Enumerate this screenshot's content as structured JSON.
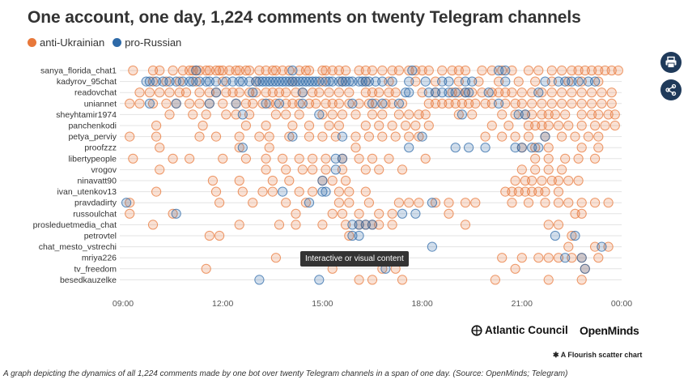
{
  "title": "One account, one day, 1,224 comments on twenty Telegram channels",
  "legend": [
    {
      "label": "anti-Ukrainian",
      "color": "#e8783a"
    },
    {
      "label": "pro-Russian",
      "color": "#2e6aa8"
    }
  ],
  "tooltip": "Interactive or visual content",
  "brands": {
    "atlantic": "Atlantic Council",
    "openminds": "OpenMinds"
  },
  "flourish_label": "A Flourish scatter chart",
  "caption": "A graph depicting the dynamics of all 1,224 comments made by one bot over twenty Telegram channels in a span of one day. (Source: OpenMinds; Telegram)",
  "icons": {
    "print": "print-icon",
    "share": "share-icon"
  },
  "chart_data": {
    "type": "scatter",
    "x_ticks": [
      "09:00",
      "12:00",
      "15:00",
      "18:00",
      "21:00",
      "00:00"
    ],
    "categories": [
      "sanya_florida_chat1",
      "kadyrov_95chat",
      "readovchat",
      "uniannet",
      "sheyhtamir1974",
      "panchenkodi",
      "petya_perviy",
      "proofzzz",
      "libertypeople",
      "vrogov",
      "ninavatt90",
      "ivan_utenkov13",
      "pravdadirty",
      "russoulchat",
      "prosleduetmedia_chat",
      "petrovtel",
      "chat_mesto_vstrechi",
      "mriya226",
      "tv_freedom",
      "besedkauzelke"
    ],
    "series": [
      {
        "name": "anti-Ukrainian",
        "color": "#e8783a",
        "points": [
          [
            "sanya_florida_chat1",
            [
              9.3,
              9.9,
              10.1,
              10.5,
              10.8,
              11.0,
              11.1,
              11.2,
              11.3,
              11.5,
              11.6,
              11.8,
              11.9,
              12.0,
              12.2,
              12.4,
              12.5,
              12.7,
              12.8,
              13.1,
              13.3,
              13.5,
              13.6,
              13.8,
              14.0,
              14.3,
              14.5,
              14.6,
              15.0,
              15.1,
              15.3,
              15.5,
              15.7,
              16.1,
              16.3,
              16.5,
              16.8,
              17.1,
              17.3,
              17.6,
              17.8,
              18.0,
              18.2,
              18.6,
              18.9,
              19.1,
              19.3,
              19.8,
              20.1,
              20.4,
              20.7,
              21.2,
              21.5,
              21.9,
              22.2,
              22.5,
              22.7,
              22.9,
              23.1,
              23.3,
              23.5,
              23.7,
              23.9
            ]
          ],
          [
            "kadyrov_95chat",
            [
              9.9,
              10.3,
              10.7,
              11.2,
              12.0,
              13.0,
              14.1,
              15.0,
              15.6,
              16.3,
              17.0,
              17.8,
              18.4,
              19.1,
              19.7,
              20.3,
              20.9,
              21.4,
              21.9,
              22.4,
              22.8,
              23.3
            ]
          ],
          [
            "readovchat",
            [
              9.5,
              9.8,
              10.1,
              10.4,
              10.7,
              10.9,
              11.3,
              11.6,
              11.8,
              12.1,
              12.3,
              12.5,
              12.8,
              13.0,
              13.3,
              13.5,
              13.7,
              13.9,
              14.2,
              14.4,
              14.7,
              14.9,
              15.2,
              15.5,
              15.8,
              16.3,
              16.5,
              16.7,
              17.0,
              17.2,
              18.0,
              18.4,
              18.9,
              19.1,
              19.3,
              19.5,
              19.8,
              20.1,
              20.3,
              20.5,
              20.7,
              21.0,
              21.3,
              21.6,
              21.9,
              22.2,
              22.5,
              22.8,
              23.1,
              23.4,
              23.7
            ]
          ],
          [
            "uniannet",
            [
              9.2,
              9.5,
              9.9,
              10.3,
              10.6,
              11.0,
              11.3,
              11.6,
              12.0,
              12.4,
              12.7,
              12.9,
              13.2,
              13.4,
              13.6,
              13.9,
              14.1,
              14.3,
              14.6,
              14.8,
              15.1,
              15.3,
              15.5,
              15.8,
              16.1,
              16.4,
              16.6,
              16.9,
              17.1,
              17.4,
              18.2,
              18.4,
              18.6,
              18.8,
              19.0,
              19.2,
              19.4,
              19.6,
              19.9,
              20.1,
              20.5,
              20.8,
              21.0,
              21.3,
              21.6,
              21.9,
              22.2,
              22.5,
              22.8,
              23.1,
              23.4,
              23.7
            ]
          ],
          [
            "sheyhtamir1974",
            [
              10.4,
              11.1,
              11.5,
              12.1,
              12.4,
              12.8,
              13.6,
              13.9,
              14.3,
              15.0,
              15.3,
              15.6,
              16.0,
              16.5,
              16.8,
              17.3,
              17.6,
              17.9,
              18.1,
              19.1,
              19.5,
              20.4,
              20.8,
              21.1,
              21.3,
              21.6,
              21.8,
              22.0,
              22.3,
              22.8,
              23.1,
              23.3,
              23.6,
              23.8
            ]
          ],
          [
            "panchenkodi",
            [
              10.0,
              11.4,
              12.7,
              13.3,
              14.1,
              14.6,
              15.2,
              15.5,
              16.3,
              16.7,
              17.1,
              17.5,
              17.8,
              18.2,
              20.1,
              20.6,
              21.2,
              21.4,
              21.6,
              21.8,
              22.1,
              22.4,
              22.8,
              23.2,
              23.5,
              23.8
            ]
          ],
          [
            "petya_perviy",
            [
              9.2,
              10.0,
              11.3,
              11.8,
              12.5,
              13.1,
              13.4,
              14.0,
              14.6,
              15.0,
              15.4,
              16.0,
              16.4,
              16.8,
              17.2,
              17.6,
              17.9,
              19.9,
              20.4,
              20.8,
              21.2,
              21.7,
              22.2,
              22.6,
              23.0,
              23.3
            ]
          ],
          [
            "proofzzz",
            [
              10.1,
              12.5,
              13.4,
              16.0,
              21.0,
              21.4,
              21.8,
              22.8,
              23.3
            ]
          ],
          [
            "libertypeople",
            [
              9.3,
              10.5,
              11.0,
              12.0,
              12.7,
              13.3,
              13.8,
              14.3,
              14.7,
              15.1,
              15.6,
              16.1,
              16.5,
              17.0,
              18.1,
              21.4,
              21.8,
              22.3,
              22.7,
              23.2
            ]
          ],
          [
            "vrogov",
            [
              10.1,
              13.3,
              13.9,
              14.4,
              14.7,
              15.1,
              15.6,
              16.3,
              16.7,
              17.4,
              21.0,
              21.4,
              21.8,
              22.2
            ]
          ],
          [
            "ninavatt90",
            [
              11.7,
              12.5,
              13.5,
              14.0,
              15.0,
              15.3,
              15.7,
              20.8,
              21.1,
              21.3,
              21.6,
              21.9,
              22.1,
              22.4,
              22.7
            ]
          ],
          [
            "ivan_utenkov13",
            [
              10.0,
              11.8,
              12.6,
              13.2,
              13.5,
              14.3,
              14.7,
              15.5,
              15.8,
              16.3,
              20.5,
              20.7,
              20.9,
              21.1,
              21.3,
              21.5,
              21.7,
              22.1
            ]
          ],
          [
            "pravdadirty",
            [
              9.2,
              11.9,
              12.9,
              13.9,
              14.5,
              15.5,
              15.8,
              16.4,
              17.3,
              17.6,
              17.9,
              18.4,
              18.8,
              19.3,
              19.6,
              20.7,
              21.2,
              21.7,
              22.1,
              22.4,
              22.8,
              23.2,
              23.6
            ]
          ],
          [
            "russoulchat",
            [
              9.2,
              10.5,
              14.2,
              15.3,
              15.6,
              16.1,
              16.7,
              17.1,
              18.8,
              22.6,
              22.8
            ]
          ],
          [
            "prosleduetmedia_chat",
            [
              9.9,
              12.5,
              13.7,
              14.2,
              15.0,
              15.7,
              16.1,
              16.3,
              16.5,
              16.7,
              17.1,
              19.3,
              21.8,
              22.1
            ]
          ],
          [
            "petrovtel",
            [
              11.6,
              11.9,
              15.8,
              22.5
            ]
          ],
          [
            "chat_mesto_vstrechi",
            [
              22.4,
              23.2,
              23.6
            ]
          ],
          [
            "mriya226",
            [
              13.6,
              16.1,
              17.0,
              20.4,
              21.0,
              21.5,
              21.8,
              22.1,
              22.5,
              22.8,
              23.3
            ]
          ],
          [
            "tv_freedom",
            [
              11.5,
              15.3,
              16.8,
              17.2,
              20.8,
              22.9
            ]
          ],
          [
            "besedkauzelke",
            [
              16.1,
              16.5,
              17.4,
              20.2,
              21.8,
              22.8
            ]
          ]
        ]
      },
      {
        "name": "pro-Russian",
        "color": "#2e6aa8",
        "points": [
          [
            "sanya_florida_chat1",
            [
              11.2,
              14.1,
              17.7,
              20.3,
              20.5
            ]
          ],
          [
            "kadyrov_95chat",
            [
              9.7,
              9.8,
              10.0,
              10.2,
              10.4,
              10.6,
              10.8,
              11.0,
              11.1,
              11.3,
              11.5,
              11.6,
              11.8,
              12.1,
              12.3,
              12.5,
              12.6,
              12.8,
              13.0,
              13.1,
              13.2,
              13.3,
              13.4,
              13.5,
              13.6,
              13.7,
              13.8,
              13.9,
              14.0,
              14.1,
              14.2,
              14.3,
              14.4,
              14.5,
              14.6,
              14.7,
              14.8,
              14.9,
              15.1,
              15.2,
              15.3,
              15.5,
              15.6,
              15.7,
              15.8,
              15.9,
              16.1,
              16.2,
              16.3,
              16.4,
              16.6,
              16.8,
              17.1,
              17.6,
              18.1,
              18.6,
              18.8,
              19.3,
              19.5,
              20.5,
              21.7,
              22.1,
              22.3,
              22.5,
              22.7,
              23.0,
              23.2
            ]
          ],
          [
            "readovchat",
            [
              11.8,
              12.9,
              14.4,
              17.5,
              17.6,
              18.2,
              18.4,
              18.6,
              18.8,
              19.0,
              19.3,
              19.4,
              20.0,
              21.5
            ]
          ],
          [
            "uniannet",
            [
              9.8,
              10.6,
              11.6,
              12.4,
              13.3,
              13.7,
              14.4,
              15.9,
              16.5,
              16.8,
              17.3,
              20.3
            ]
          ],
          [
            "sheyhtamir1974",
            [
              12.6,
              14.9,
              19.2,
              20.9,
              21.1
            ]
          ],
          [
            "panchenkodi",
            []
          ],
          [
            "petya_perviy",
            [
              14.1,
              15.6,
              18.0,
              21.7
            ]
          ],
          [
            "proofzzz",
            [
              12.6,
              17.6,
              19.0,
              19.4,
              19.9,
              20.8,
              21.0,
              21.3,
              21.5
            ]
          ],
          [
            "libertypeople",
            [
              15.4,
              15.6
            ]
          ],
          [
            "vrogov",
            [
              15.4
            ]
          ],
          [
            "ninavatt90",
            [
              15.0
            ]
          ],
          [
            "ivan_utenkov13",
            [
              13.8,
              15.0,
              15.1
            ]
          ],
          [
            "pravdadirty",
            [
              9.1,
              14.6,
              18.3
            ]
          ],
          [
            "russoulchat",
            [
              10.6,
              17.4,
              17.8
            ]
          ],
          [
            "prosleduetmedia_chat",
            [
              15.9,
              16.1,
              16.3,
              16.5
            ]
          ],
          [
            "petrovtel",
            [
              15.9,
              16.1,
              22.0,
              22.6
            ]
          ],
          [
            "chat_mesto_vstrechi",
            [
              18.3,
              23.4
            ]
          ],
          [
            "mriya226",
            [
              22.3,
              22.8
            ]
          ],
          [
            "tv_freedom",
            [
              16.9,
              22.9
            ]
          ],
          [
            "besedkauzelke",
            [
              13.1,
              14.9
            ]
          ]
        ]
      }
    ],
    "xlim": [
      9,
      24
    ],
    "grid": true,
    "legend_position": "top-left"
  }
}
